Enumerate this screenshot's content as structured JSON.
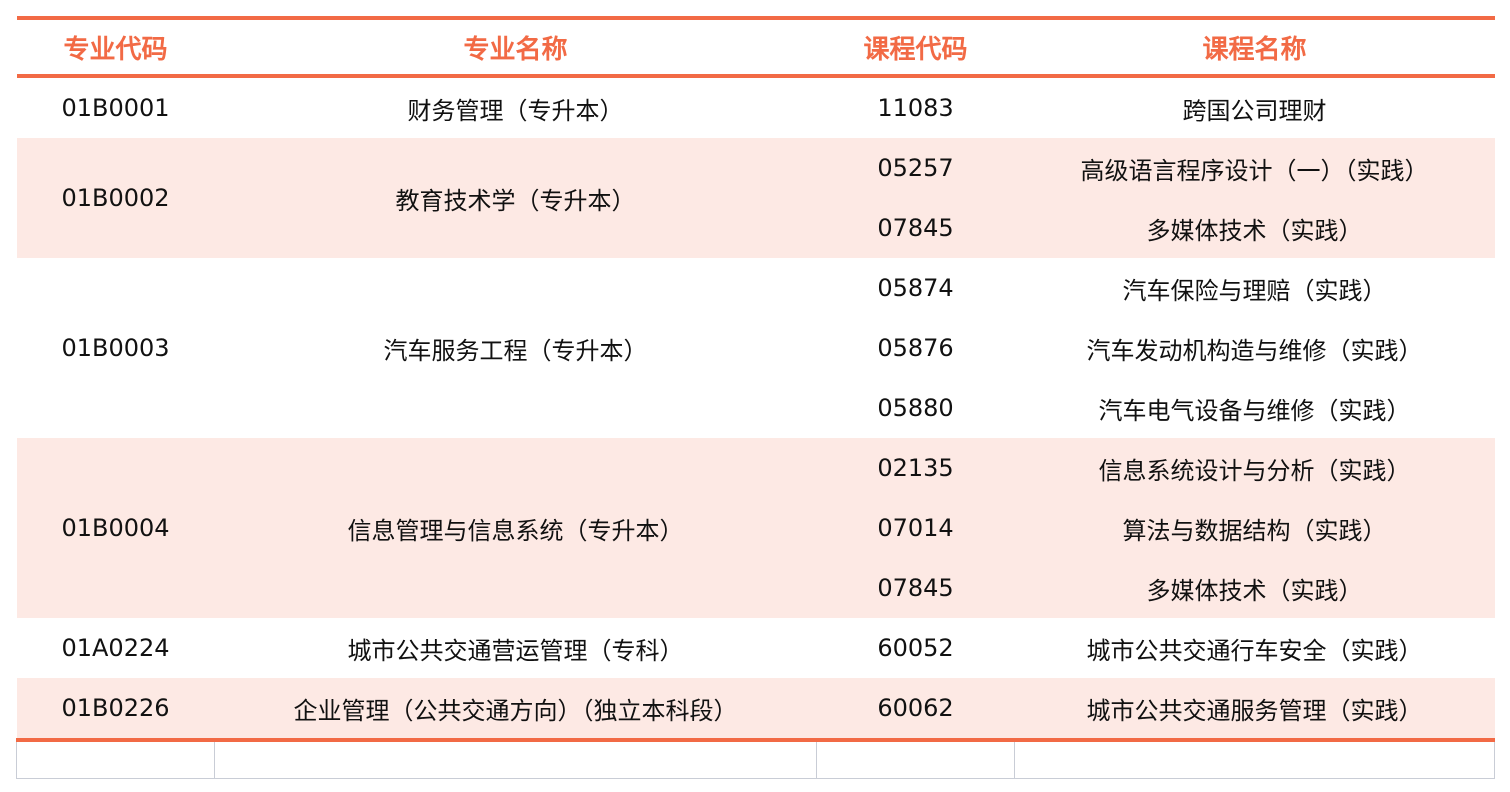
{
  "headers": [
    "专业代码",
    "专业名称",
    "课程代码",
    "课程名称"
  ],
  "rows": [
    {
      "major_code": "01B0001",
      "major_name": "财务管理（专升本）",
      "courses": [
        {
          "code": "11083",
          "name": "跨国公司理财"
        }
      ]
    },
    {
      "major_code": "01B0002",
      "major_name": "教育技术学（专升本）",
      "courses": [
        {
          "code": "05257",
          "name": "高级语言程序设计（一）（实践）"
        },
        {
          "code": "07845",
          "name": "多媒体技术（实践）"
        }
      ]
    },
    {
      "major_code": "01B0003",
      "major_name": "汽车服务工程（专升本）",
      "courses": [
        {
          "code": "05874",
          "name": "汽车保险与理赔（实践）"
        },
        {
          "code": "05876",
          "name": "汽车发动机构造与维修（实践）"
        },
        {
          "code": "05880",
          "name": "汽车电气设备与维修（实践）"
        }
      ]
    },
    {
      "major_code": "01B0004",
      "major_name": "信息管理与信息系统（专升本）",
      "courses": [
        {
          "code": "02135",
          "name": "信息系统设计与分析（实践）"
        },
        {
          "code": "07014",
          "name": "算法与数据结构（实践）"
        },
        {
          "code": "07845",
          "name": "多媒体技术（实践）"
        }
      ]
    },
    {
      "major_code": "01A0224",
      "major_name": "城市公共交通营运管理（专科）",
      "courses": [
        {
          "code": "60052",
          "name": "城市公共交通行车安全（实践）"
        }
      ]
    },
    {
      "major_code": "01B0226",
      "major_name": "企业管理（公共交通方向）（独立本科段）",
      "courses": [
        {
          "code": "60062",
          "name": "城市公共交通服务管理（实践）"
        }
      ]
    }
  ],
  "colors": {
    "accent": "#f26a45",
    "stripe": "#fde9e4"
  }
}
